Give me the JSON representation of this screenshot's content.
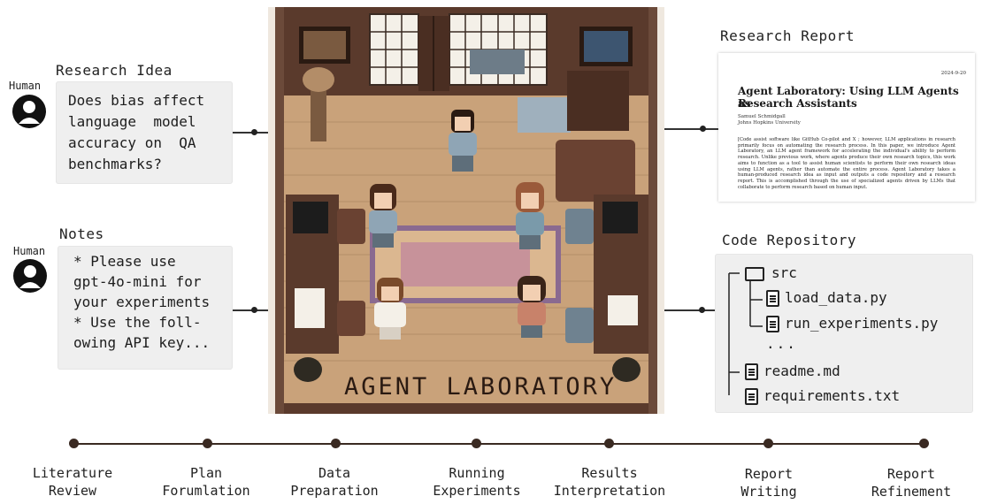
{
  "research_idea": {
    "heading": "Research Idea",
    "human_label": "Human",
    "lines": [
      "Does bias affect",
      "language  model",
      "accuracy on  QA",
      "benchmarks?"
    ]
  },
  "notes": {
    "heading": "Notes",
    "human_label": "Human",
    "lines": [
      "* Please use",
      "gpt-4o-mini for",
      "your experiments",
      "* Use the foll-",
      "owing API key..."
    ]
  },
  "lab": {
    "title": "AGENT LABORATORY"
  },
  "research_report": {
    "heading": "Research Report",
    "date": "2024-9-20",
    "title_line1": "Agent Laboratory: Using LLM Agents as",
    "title_line2": "Research Assistants",
    "author": "Samuel Schmidgall",
    "affiliation": "Johns Hopkins University",
    "abstract": "[Code assist software like GitHub Co-pilot and X ; however, LLM applications in research primarily focus on automating the research process. In this paper, we introduce Agent Laboratory, an LLM agent framework for accelerating the individual's ability to perform research. Unlike previous work, where agents produce their own research topics, this work aims to function as a tool to assist human scientists to perform their own research ideas using LLM agents, rather than automate the entire process. Agent Laboratory takes a human-produced research idea as input and outputs a code repository and a research report. This is accomplished through the use of specialized agents driven by LLMs that collaborate to perform research based on human input."
  },
  "code_repository": {
    "heading": "Code Repository",
    "folder": "src",
    "files_in_src": [
      "load_data.py",
      "run_experiments.py"
    ],
    "ellipsis": "...",
    "root_files": [
      "readme.md",
      "requirements.txt"
    ]
  },
  "stages": [
    {
      "line1": "Literature",
      "line2": "Review"
    },
    {
      "line1": "Plan",
      "line2": "Forumlation"
    },
    {
      "line1": "Data",
      "line2": "Preparation"
    },
    {
      "line1": "Running",
      "line2": "Experiments"
    },
    {
      "line1": "Results",
      "line2": "Interpretation"
    },
    {
      "line1": "Report",
      "line2": "Writing"
    },
    {
      "line1": "Report",
      "line2": "Refinement"
    }
  ],
  "colors": {
    "floor": "#c9a27a",
    "wall": "#5a3a2c",
    "frame": "#6b4a3a",
    "timeline": "#3a2a22",
    "box_bg": "#efefef"
  },
  "icons": [
    "human-icon",
    "folder-icon",
    "file-icon"
  ]
}
